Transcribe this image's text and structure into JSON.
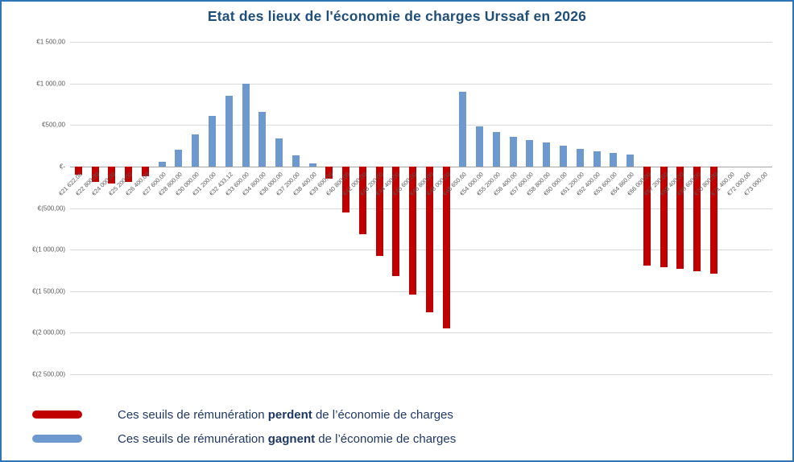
{
  "chart_data": {
    "type": "bar",
    "title": "Etat des lieux de l'économie de charges Urssaf en 2026",
    "xlabel": "",
    "ylabel": "",
    "ylim": [
      -2500,
      1500
    ],
    "grid": true,
    "legend_position": "bottom-left",
    "yticks": [
      {
        "value": 1500,
        "label": "€1 500,00"
      },
      {
        "value": 1000,
        "label": "€1 000,00"
      },
      {
        "value": 500,
        "label": "€500,00"
      },
      {
        "value": 0,
        "label": "€-"
      },
      {
        "value": -500,
        "label": "€(500,00)"
      },
      {
        "value": -1000,
        "label": "€(1 000,00)"
      },
      {
        "value": -1500,
        "label": "€(1 500,00)"
      },
      {
        "value": -2000,
        "label": "€(2 000,00)"
      },
      {
        "value": -2500,
        "label": "€(2 500,00)"
      }
    ],
    "categories": [
      "€21 622,08",
      "€22 800,00",
      "€24 000,00",
      "€25 200,00",
      "€26 400,00",
      "€27 600,00",
      "€28 800,00",
      "€30 000,00",
      "€31 200,00",
      "€32 433,12",
      "€33 600,00",
      "€34 800,00",
      "€36 000,00",
      "€37 200,00",
      "€38 400,00",
      "€39 600,00",
      "€40 800,00",
      "€42 000,00",
      "€43 200,00",
      "€44 400,00",
      "€45 600,00",
      "€46 800,00",
      "€48 000,00",
      "€48 650,60",
      "€54 000,00",
      "€55 200,00",
      "€56 400,00",
      "€57 600,00",
      "€58 800,00",
      "€60 000,00",
      "€61 200,00",
      "€62 400,00",
      "€63 600,00",
      "€64 860,00",
      "€66 000,00",
      "€67 200,00",
      "€68 400,00",
      "€69 600,00",
      "€70 800,00",
      "€71 400,00",
      "€72 000,00",
      "€73 000,00"
    ],
    "values": [
      -95,
      -185,
      -205,
      -190,
      -115,
      55,
      200,
      385,
      610,
      855,
      1000,
      655,
      340,
      130,
      35,
      -150,
      -550,
      -815,
      -1075,
      -1315,
      -1540,
      -1750,
      -1950,
      900,
      480,
      415,
      360,
      315,
      290,
      250,
      210,
      180,
      160,
      140,
      -1190,
      -1215,
      -1230,
      -1260,
      -1285,
      0,
      0,
      0
    ],
    "legend": [
      {
        "prefix": "Ces seuils de rémunération ",
        "bold": "perdent",
        "suffix": " de l’économie de charges"
      },
      {
        "prefix": "Ces seuils de rémunération ",
        "bold": "gagnent",
        "suffix": " de l’économie de charges"
      }
    ],
    "colors": {
      "negative": "#C00000",
      "positive": "#6D99CE",
      "title": "#1F4E79",
      "legend_text": "#1F3864",
      "gridline": "#D9D9D9",
      "zero_line": "#A6A6A6",
      "tick_text": "#595959",
      "border": "#2E75B6"
    }
  }
}
